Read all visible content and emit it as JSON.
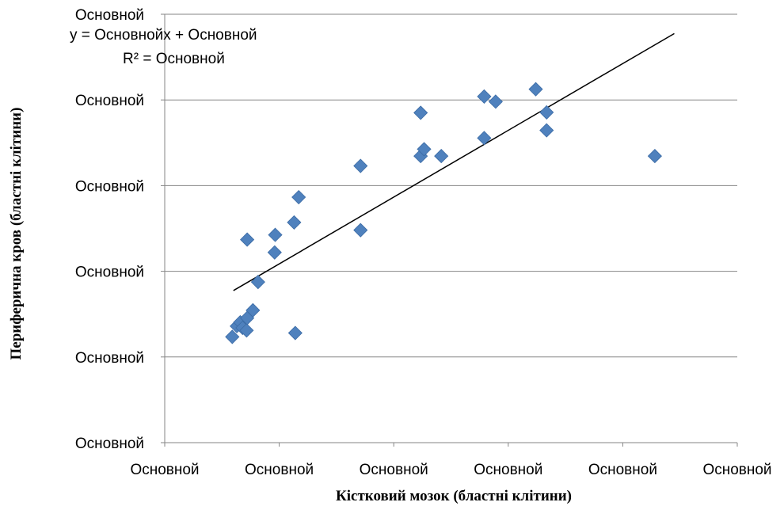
{
  "chart_data": {
    "type": "scatter",
    "xlabel": "Кістковий мозок (бластні клітини)",
    "ylabel": "Периферична кров (бластні клітини)",
    "x_tick_labels": [
      "Основной",
      "Основной",
      "Основной",
      "Основной",
      "Основной",
      "Основной"
    ],
    "y_tick_labels": [
      "Основной",
      "Основной",
      "Основной",
      "Основной",
      "Основной",
      "Основной"
    ],
    "xlim": [
      0,
      100
    ],
    "ylim": [
      0,
      100
    ],
    "grid": "horizontal",
    "legend": "none",
    "trendline": {
      "equation": "y = Основнойx + Основной",
      "r_squared": "R² = Основной",
      "x": [
        12,
        89
      ],
      "y": [
        35.5,
        95.5
      ]
    },
    "series": [
      {
        "color": "#4F81BD",
        "points": [
          [
            11.8,
            24.7
          ],
          [
            12.6,
            27.2
          ],
          [
            13.2,
            28.1
          ],
          [
            13.6,
            26.8
          ],
          [
            14.3,
            26.2
          ],
          [
            14.4,
            29.1
          ],
          [
            15.4,
            30.9
          ],
          [
            16.3,
            37.5
          ],
          [
            14.4,
            47.4
          ],
          [
            19.2,
            44.4
          ],
          [
            19.3,
            48.5
          ],
          [
            22.6,
            51.4
          ],
          [
            22.8,
            25.6
          ],
          [
            23.4,
            57.3
          ],
          [
            34.2,
            49.6
          ],
          [
            34.2,
            64.6
          ],
          [
            44.7,
            66.9
          ],
          [
            45.3,
            68.5
          ],
          [
            44.7,
            77.0
          ],
          [
            48.3,
            66.9
          ],
          [
            55.8,
            71.1
          ],
          [
            55.8,
            80.8
          ],
          [
            57.8,
            79.6
          ],
          [
            64.8,
            82.5
          ],
          [
            66.7,
            77.1
          ],
          [
            66.7,
            72.9
          ],
          [
            85.6,
            66.9
          ]
        ]
      }
    ]
  }
}
